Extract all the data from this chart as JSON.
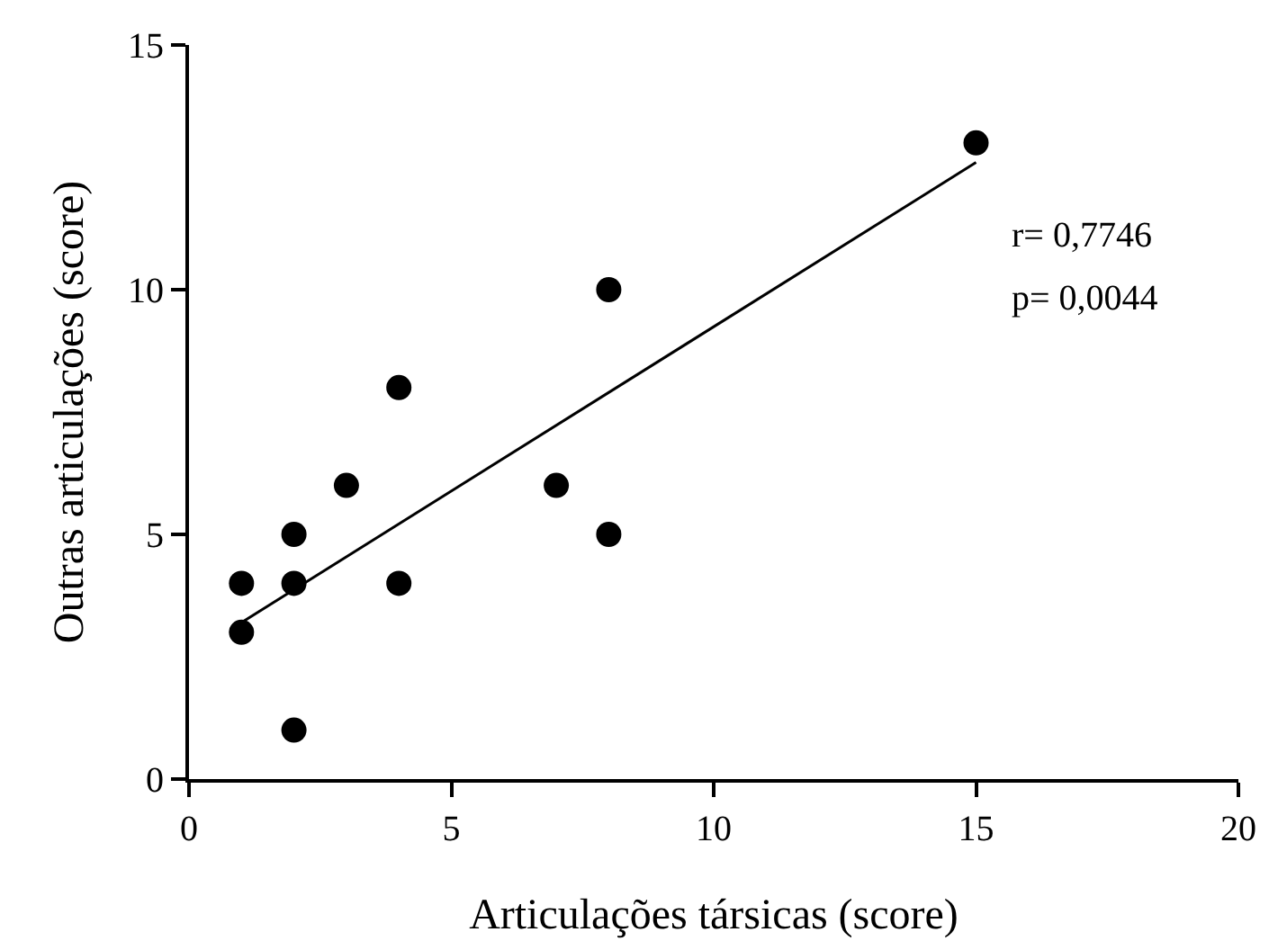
{
  "chart_data": {
    "type": "scatter",
    "xlabel": "Articulações társicas (score)",
    "ylabel": "Outras articulações (score)",
    "xlim": [
      0,
      20
    ],
    "xticks": [
      0,
      5,
      10,
      15,
      20
    ],
    "ylim": [
      0,
      15
    ],
    "yticks": [
      0,
      5,
      10,
      15
    ],
    "grid": false,
    "annotations": [
      "r= 0,7746",
      "p= 0,0044"
    ],
    "series": [
      {
        "marker": "circle",
        "color": "#000000",
        "x": [
          1,
          1,
          2,
          2,
          2,
          3,
          4,
          4,
          7,
          8,
          8,
          15
        ],
        "values": [
          4,
          3,
          5,
          4,
          1,
          6,
          8,
          4,
          6,
          10,
          5,
          13
        ]
      },
      {
        "type": "line",
        "marker": "none",
        "color": "#000000",
        "line_style": "solid",
        "x": [
          1,
          15
        ],
        "values": [
          3.2,
          12.6
        ]
      }
    ]
  }
}
